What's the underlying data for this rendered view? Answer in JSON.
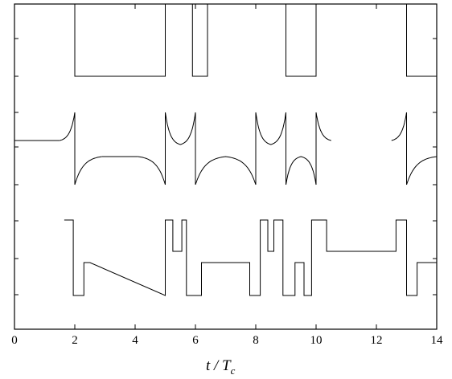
{
  "chart_data": {
    "type": "line",
    "xlabel_main": "t / T",
    "xlabel_sub": "c",
    "xlim": [
      0,
      14
    ],
    "x_ticks": [
      0,
      2,
      4,
      6,
      8,
      10,
      12,
      14
    ],
    "x_tick_labels": [
      "0",
      "2",
      "4",
      "6",
      "8",
      "10",
      "12",
      "14"
    ],
    "grid": false,
    "series": [
      {
        "panel": "top",
        "shape": "step",
        "levels": [
          "high",
          "low"
        ],
        "points": [
          [
            0,
            "high"
          ],
          [
            2.0,
            "high"
          ],
          [
            2.0,
            "low"
          ],
          [
            5.0,
            "low"
          ],
          [
            5.0,
            "high"
          ],
          [
            5.9,
            "high"
          ],
          [
            5.9,
            "low"
          ],
          [
            6.4,
            "low"
          ],
          [
            6.4,
            "high"
          ],
          [
            9.0,
            "high"
          ],
          [
            9.0,
            "low"
          ],
          [
            10.0,
            "low"
          ],
          [
            10.0,
            "high"
          ],
          [
            13.0,
            "high"
          ],
          [
            13.0,
            "low"
          ],
          [
            14.0,
            "low"
          ]
        ]
      },
      {
        "panel": "middle",
        "shape": "exponential-cusps",
        "switch_times": [
          2.0,
          5.0,
          6.0,
          8.0,
          9.0,
          10.0,
          13.0
        ],
        "segments": [
          {
            "from": 0,
            "to": 1.5,
            "kind": "flat",
            "level": "mid"
          },
          {
            "from": 1.5,
            "to": 2.0,
            "kind": "rise-to-top"
          },
          {
            "from": 2.0,
            "to": 2.9,
            "kind": "rise-from-bottom"
          },
          {
            "from": 2.9,
            "to": 4.1,
            "kind": "flat",
            "level": "lower-mid"
          },
          {
            "from": 4.1,
            "to": 5.0,
            "kind": "fall-to-bottom"
          },
          {
            "from": 5.0,
            "to": 6.0,
            "kind": "upper-arch"
          },
          {
            "from": 6.0,
            "to": 8.0,
            "kind": "lower-arch"
          },
          {
            "from": 8.0,
            "to": 9.0,
            "kind": "upper-arch"
          },
          {
            "from": 9.0,
            "to": 10.0,
            "kind": "lower-arch"
          },
          {
            "from": 10.0,
            "to": 10.5,
            "kind": "decay-from-top"
          },
          {
            "from": 12.5,
            "to": 13.0,
            "kind": "rise-to-top"
          },
          {
            "from": 13.0,
            "to": 14.0,
            "kind": "rise-from-bottom"
          }
        ]
      },
      {
        "panel": "bottom",
        "shape": "step",
        "levels": [
          "top",
          "upper",
          "mid",
          "low"
        ],
        "points": [
          [
            1.65,
            "top"
          ],
          [
            1.95,
            "top"
          ],
          [
            1.95,
            "low"
          ],
          [
            2.15,
            "low"
          ],
          [
            2.3,
            "low"
          ],
          [
            2.3,
            "mid"
          ],
          [
            2.5,
            "mid"
          ],
          [
            5.0,
            "low"
          ],
          [
            5.0,
            "top"
          ],
          [
            5.25,
            "top"
          ],
          [
            5.25,
            "upper"
          ],
          [
            5.55,
            "upper"
          ],
          [
            5.55,
            "top"
          ],
          [
            5.7,
            "top"
          ],
          [
            5.7,
            "low"
          ],
          [
            6.2,
            "low"
          ],
          [
            6.2,
            "mid"
          ],
          [
            7.8,
            "mid"
          ],
          [
            7.8,
            "low"
          ],
          [
            8.15,
            "low"
          ],
          [
            8.15,
            "top"
          ],
          [
            8.4,
            "top"
          ],
          [
            8.4,
            "upper"
          ],
          [
            8.6,
            "upper"
          ],
          [
            8.6,
            "top"
          ],
          [
            8.9,
            "top"
          ],
          [
            8.9,
            "low"
          ],
          [
            9.3,
            "low"
          ],
          [
            9.3,
            "mid"
          ],
          [
            9.6,
            "mid"
          ],
          [
            9.6,
            "low"
          ],
          [
            9.85,
            "low"
          ],
          [
            9.85,
            "top"
          ],
          [
            10.35,
            "top"
          ],
          [
            10.35,
            "upper"
          ],
          [
            12.65,
            "upper"
          ],
          [
            12.65,
            "top"
          ],
          [
            13.0,
            "top"
          ],
          [
            13.0,
            "low"
          ],
          [
            13.35,
            "low"
          ],
          [
            13.35,
            "mid"
          ],
          [
            14.0,
            "mid"
          ]
        ]
      }
    ]
  }
}
